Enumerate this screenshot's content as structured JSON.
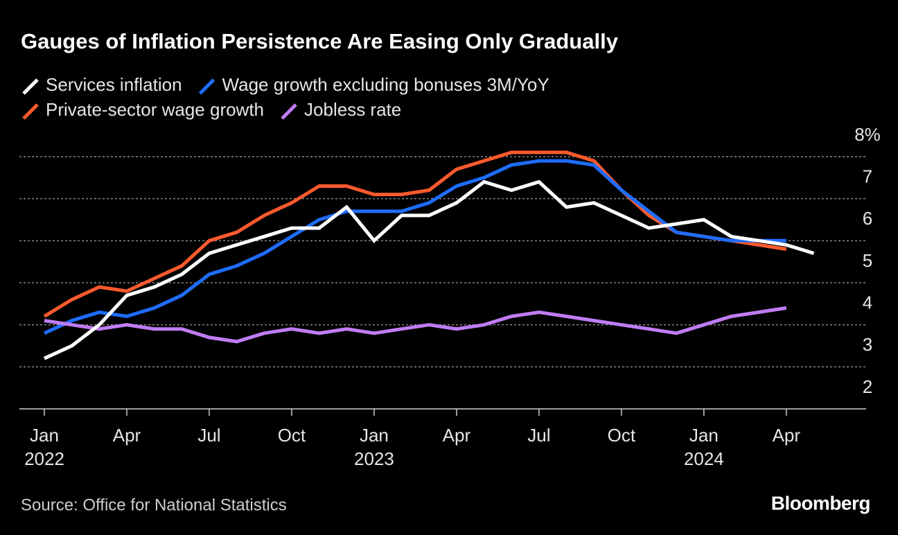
{
  "chart_data": {
    "type": "line",
    "title": "Gauges of Inflation Persistence Are Easing Only Gradually",
    "source": "Source: Office for National Statistics",
    "brand": "Bloomberg",
    "x": [
      "2022-01",
      "2022-02",
      "2022-03",
      "2022-04",
      "2022-05",
      "2022-06",
      "2022-07",
      "2022-08",
      "2022-09",
      "2022-10",
      "2022-11",
      "2022-12",
      "2023-01",
      "2023-02",
      "2023-03",
      "2023-04",
      "2023-05",
      "2023-06",
      "2023-07",
      "2023-08",
      "2023-09",
      "2023-10",
      "2023-11",
      "2023-12",
      "2024-01",
      "2024-02",
      "2024-03",
      "2024-04",
      "2024-05"
    ],
    "xticks": [
      {
        "value": "2022-01",
        "label": "Jan"
      },
      {
        "value": "2022-04",
        "label": "Apr"
      },
      {
        "value": "2022-07",
        "label": "Jul"
      },
      {
        "value": "2022-10",
        "label": "Oct"
      },
      {
        "value": "2023-01",
        "label": "Jan"
      },
      {
        "value": "2023-04",
        "label": "Apr"
      },
      {
        "value": "2023-07",
        "label": "Jul"
      },
      {
        "value": "2023-10",
        "label": "Oct"
      },
      {
        "value": "2024-01",
        "label": "Jan"
      },
      {
        "value": "2024-04",
        "label": "Apr"
      }
    ],
    "xtick_years": [
      {
        "value": "2022-01",
        "label": "2022"
      },
      {
        "value": "2023-01",
        "label": "2023"
      },
      {
        "value": "2024-01",
        "label": "2024"
      }
    ],
    "ylim": [
      2,
      8
    ],
    "yticks": [
      2,
      3,
      4,
      5,
      6,
      7,
      {
        "value": 8,
        "label": "8%"
      }
    ],
    "grid": true,
    "series": [
      {
        "name": "Services inflation",
        "color": "#ffffff",
        "values": [
          3.2,
          3.5,
          4.0,
          4.7,
          4.9,
          5.2,
          5.7,
          5.9,
          6.1,
          6.3,
          6.3,
          6.8,
          6.0,
          6.6,
          6.6,
          6.9,
          7.4,
          7.2,
          7.4,
          6.8,
          6.9,
          6.6,
          6.3,
          6.4,
          6.5,
          6.1,
          6.0,
          5.9,
          5.7
        ]
      },
      {
        "name": "Wage growth excluding bonuses 3M/YoY",
        "color": "#1f6dff",
        "values": [
          3.8,
          4.1,
          4.3,
          4.2,
          4.4,
          4.7,
          5.2,
          5.4,
          5.7,
          6.1,
          6.5,
          6.7,
          6.7,
          6.7,
          6.9,
          7.3,
          7.5,
          7.8,
          7.9,
          7.9,
          7.8,
          7.2,
          6.7,
          6.2,
          6.1,
          6.0,
          6.0,
          6.0,
          null
        ]
      },
      {
        "name": "Private-sector wage growth",
        "color": "#ff5a2e",
        "values": [
          4.2,
          4.6,
          4.9,
          4.8,
          5.1,
          5.4,
          6.0,
          6.2,
          6.6,
          6.9,
          7.3,
          7.3,
          7.1,
          7.1,
          7.2,
          7.7,
          7.9,
          8.1,
          8.1,
          8.1,
          7.9,
          7.2,
          6.6,
          6.2,
          6.1,
          6.0,
          5.9,
          5.8,
          null
        ]
      },
      {
        "name": "Jobless rate",
        "color": "#c07cf5",
        "values": [
          4.1,
          4.0,
          3.9,
          4.0,
          3.9,
          3.9,
          3.7,
          3.6,
          3.8,
          3.9,
          3.8,
          3.9,
          3.8,
          3.9,
          4.0,
          3.9,
          4.0,
          4.2,
          4.3,
          4.2,
          4.1,
          4.0,
          3.9,
          3.8,
          4.0,
          4.2,
          4.3,
          4.4,
          null
        ]
      }
    ]
  }
}
